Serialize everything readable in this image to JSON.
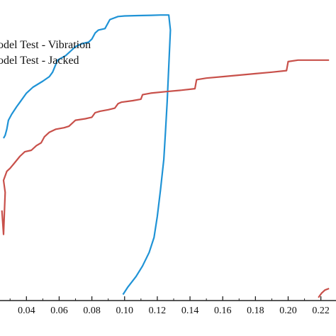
{
  "chart_data": {
    "type": "line",
    "xlim": [
      0.025,
      0.225
    ],
    "ylim": [
      0,
      1
    ],
    "x_ticks": [
      0.04,
      0.06,
      0.08,
      0.1,
      0.12,
      0.14,
      0.16,
      0.18,
      0.2,
      0.22
    ],
    "x_tick_labels": [
      "0.04",
      "0.06",
      "0.08",
      "0.10",
      "0.12",
      "0.14",
      "0.16",
      "0.18",
      "0.20",
      "0.22"
    ],
    "legend_placement": "top-left",
    "series": [
      {
        "name": "odel Test - Vibration",
        "color": "#1f93d6",
        "points": [
          [
            0.026,
            0.54
          ],
          [
            0.027,
            0.55
          ],
          [
            0.028,
            0.57
          ],
          [
            0.029,
            0.6
          ],
          [
            0.031,
            0.62
          ],
          [
            0.034,
            0.645
          ],
          [
            0.036,
            0.66
          ],
          [
            0.04,
            0.69
          ],
          [
            0.044,
            0.71
          ],
          [
            0.05,
            0.73
          ],
          [
            0.054,
            0.745
          ],
          [
            0.056,
            0.76
          ],
          [
            0.059,
            0.8
          ],
          [
            0.064,
            0.815
          ],
          [
            0.068,
            0.835
          ],
          [
            0.07,
            0.845
          ],
          [
            0.074,
            0.855
          ],
          [
            0.078,
            0.86
          ],
          [
            0.08,
            0.87
          ],
          [
            0.082,
            0.89
          ],
          [
            0.084,
            0.9
          ],
          [
            0.088,
            0.905
          ],
          [
            0.091,
            0.935
          ],
          [
            0.096,
            0.945
          ],
          [
            0.1,
            0.947
          ],
          [
            0.108,
            0.948
          ],
          [
            0.116,
            0.949
          ],
          [
            0.122,
            0.95
          ],
          [
            0.127,
            0.95
          ],
          [
            0.128,
            0.9
          ],
          [
            0.127,
            0.78
          ],
          [
            0.126,
            0.66
          ],
          [
            0.125,
            0.56
          ],
          [
            0.124,
            0.47
          ],
          [
            0.122,
            0.37
          ],
          [
            0.12,
            0.28
          ],
          [
            0.118,
            0.21
          ],
          [
            0.115,
            0.16
          ],
          [
            0.111,
            0.115
          ],
          [
            0.107,
            0.08
          ],
          [
            0.102,
            0.045
          ],
          [
            0.099,
            0.02
          ]
        ]
      },
      {
        "name": "odel Test - Jacked",
        "color": "#c8504a",
        "points": [
          [
            0.025,
            0.3
          ],
          [
            0.026,
            0.22
          ],
          [
            0.027,
            0.36
          ],
          [
            0.026,
            0.4
          ],
          [
            0.028,
            0.43
          ],
          [
            0.03,
            0.44
          ],
          [
            0.033,
            0.46
          ],
          [
            0.036,
            0.48
          ],
          [
            0.039,
            0.495
          ],
          [
            0.043,
            0.5
          ],
          [
            0.046,
            0.515
          ],
          [
            0.049,
            0.525
          ],
          [
            0.051,
            0.545
          ],
          [
            0.054,
            0.56
          ],
          [
            0.058,
            0.57
          ],
          [
            0.063,
            0.575
          ],
          [
            0.066,
            0.58
          ],
          [
            0.068,
            0.59
          ],
          [
            0.07,
            0.6
          ],
          [
            0.076,
            0.605
          ],
          [
            0.08,
            0.61
          ],
          [
            0.082,
            0.625
          ],
          [
            0.085,
            0.63
          ],
          [
            0.09,
            0.635
          ],
          [
            0.094,
            0.64
          ],
          [
            0.096,
            0.655
          ],
          [
            0.098,
            0.66
          ],
          [
            0.105,
            0.665
          ],
          [
            0.11,
            0.67
          ],
          [
            0.111,
            0.685
          ],
          [
            0.116,
            0.69
          ],
          [
            0.125,
            0.695
          ],
          [
            0.135,
            0.7
          ],
          [
            0.143,
            0.705
          ],
          [
            0.144,
            0.735
          ],
          [
            0.15,
            0.74
          ],
          [
            0.16,
            0.745
          ],
          [
            0.17,
            0.75
          ],
          [
            0.18,
            0.755
          ],
          [
            0.19,
            0.76
          ],
          [
            0.199,
            0.765
          ],
          [
            0.2,
            0.795
          ],
          [
            0.206,
            0.8
          ],
          [
            0.215,
            0.8
          ],
          [
            0.225,
            0.8
          ]
        ]
      },
      {
        "name": "",
        "color": "#c8504a",
        "points": [
          [
            0.2185,
            0.01
          ],
          [
            0.2205,
            0.025
          ],
          [
            0.2225,
            0.035
          ],
          [
            0.225,
            0.04
          ]
        ]
      }
    ],
    "grid": false,
    "xlabel": "",
    "ylabel": "",
    "title": ""
  }
}
